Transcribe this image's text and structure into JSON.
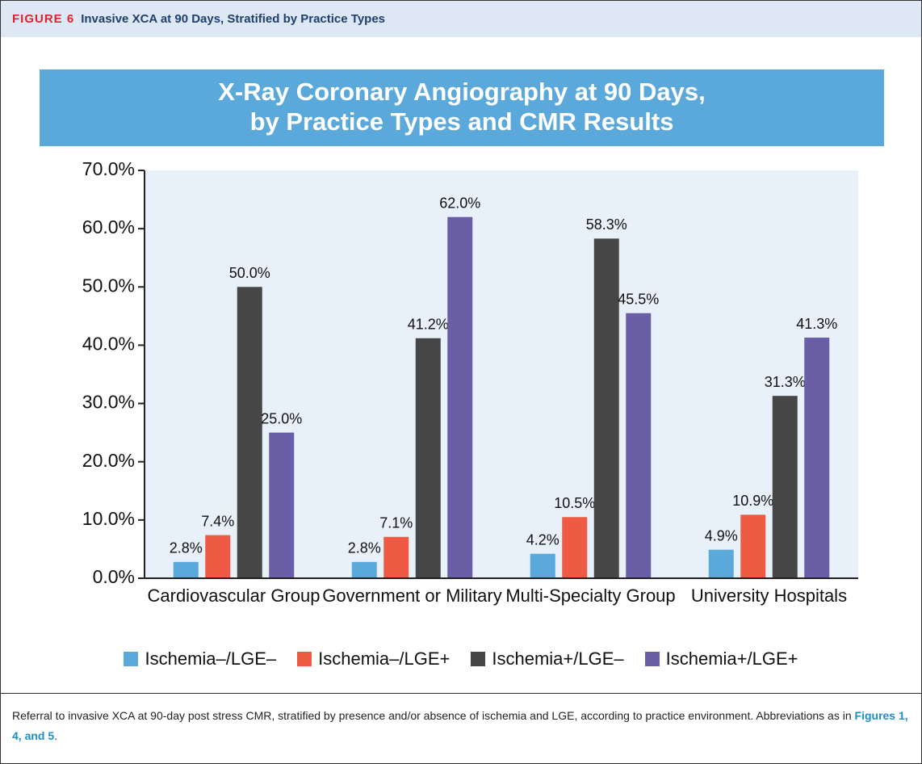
{
  "figure": {
    "label": "FIGURE 6",
    "title": "Invasive XCA at 90 Days, Stratified by Practice Types"
  },
  "chart_data": {
    "type": "bar",
    "title": "X-Ray Coronary Angiography at 90 Days,",
    "subtitle": "by Practice Types and CMR Results",
    "categories": [
      "Cardiovascular Group",
      "Government or Military",
      "Multi-Specialty Group",
      "University Hospitals"
    ],
    "series": [
      {
        "name": "Ischemia–/LGE–",
        "color": "#5ba8db",
        "values": [
          2.8,
          2.8,
          4.2,
          4.9
        ],
        "value_labels": [
          "2.8%",
          "2.8%",
          "4.2%",
          "4.9%"
        ]
      },
      {
        "name": "Ischemia–/LGE+",
        "color": "#ef5a45",
        "values": [
          7.4,
          7.1,
          10.5,
          10.9
        ],
        "value_labels": [
          "7.4%",
          "7.1%",
          "10.5%",
          "10.9%"
        ]
      },
      {
        "name": "Ischemia+/LGE–",
        "color": "#464646",
        "values": [
          50.0,
          41.2,
          58.3,
          31.3
        ],
        "value_labels": [
          "50.0%",
          "41.2%",
          "58.3%",
          "31.3%"
        ]
      },
      {
        "name": "Ischemia+/LGE+",
        "color": "#6a5ea6",
        "values": [
          25.0,
          62.0,
          45.5,
          41.3
        ],
        "value_labels": [
          "25.0%",
          "62.0%",
          "45.5%",
          "41.3%"
        ]
      }
    ],
    "ylim": [
      0,
      70
    ],
    "yticks": [
      {
        "value": 0,
        "label": "0.0%"
      },
      {
        "value": 10,
        "label": "10.0%"
      },
      {
        "value": 20,
        "label": "20.0%"
      },
      {
        "value": 30,
        "label": "30.0%"
      },
      {
        "value": 40,
        "label": "40.0%"
      },
      {
        "value": 50,
        "label": "50.0%"
      },
      {
        "value": 60,
        "label": "60.0%"
      },
      {
        "value": 70,
        "label": "70.0%"
      }
    ],
    "legend": "bottom"
  },
  "caption": {
    "text": "Referral to invasive XCA at 90-day post stress CMR, stratified by presence and/or absence of ischemia and LGE, according to practice environment. Abbreviations as in ",
    "link": "Figures 1, 4, and 5",
    "end": "."
  }
}
